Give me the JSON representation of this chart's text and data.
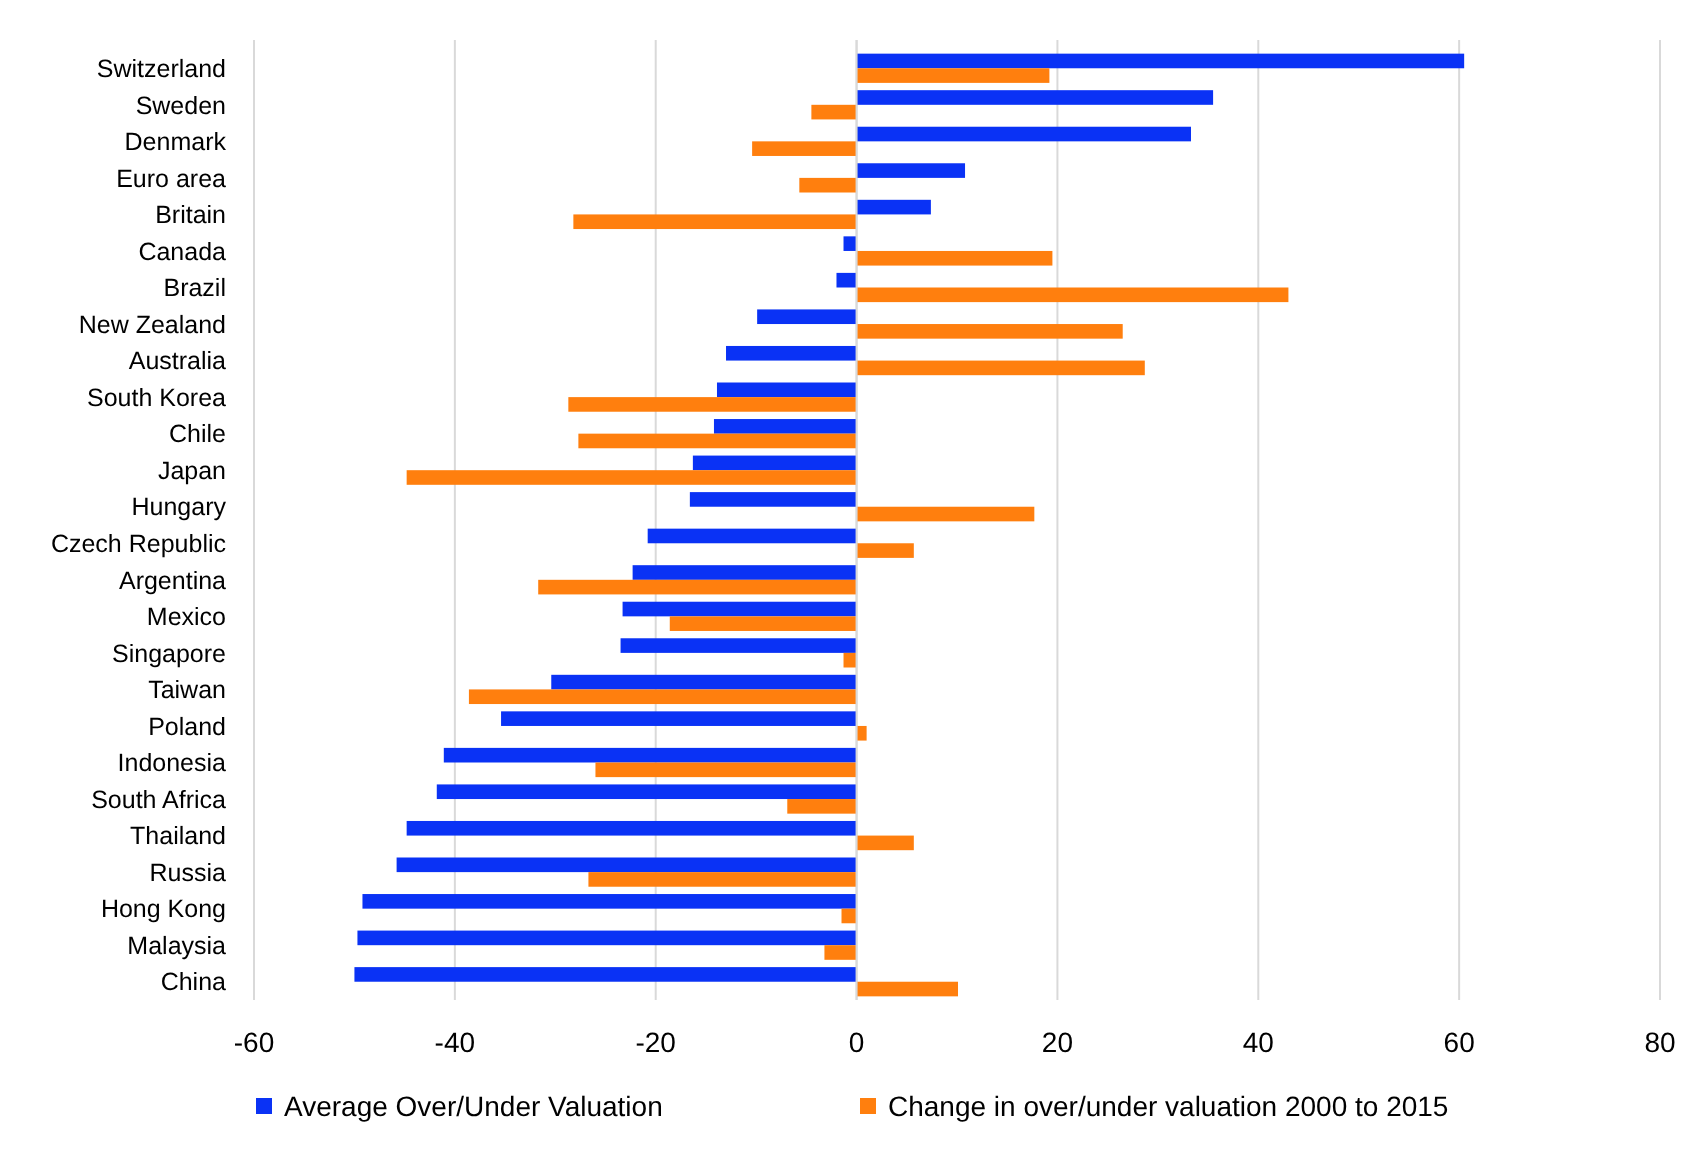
{
  "chart_data": {
    "type": "bar",
    "orientation": "horizontal",
    "categories": [
      "Switzerland",
      "Sweden",
      "Denmark",
      "Euro area",
      "Britain",
      "Canada",
      "Brazil",
      "New Zealand",
      "Australia",
      "South Korea",
      "Chile",
      "Japan",
      "Hungary",
      "Czech Republic",
      "Argentina",
      "Mexico",
      "Singapore",
      "Taiwan",
      "Poland",
      "Indonesia",
      "South Africa",
      "Thailand",
      "Russia",
      "Hong Kong",
      "Malaysia",
      "China"
    ],
    "series": [
      {
        "name": "Average Over/Under Valuation",
        "color": "#0a32f5",
        "values": [
          60.5,
          35.5,
          33.3,
          10.8,
          7.4,
          -1.3,
          -2.0,
          -9.9,
          -13.0,
          -13.9,
          -14.2,
          -16.3,
          -16.6,
          -20.8,
          -22.3,
          -23.3,
          -23.5,
          -30.4,
          -35.4,
          -41.1,
          -41.8,
          -44.8,
          -45.8,
          -49.2,
          -49.7,
          -50.0
        ]
      },
      {
        "name": "Change in over/under valuation 2000 to 2015",
        "color": "#ff7f0e",
        "values": [
          19.2,
          -4.5,
          -10.4,
          -5.7,
          -28.2,
          19.5,
          43.0,
          26.5,
          28.7,
          -28.7,
          -27.7,
          -44.8,
          17.7,
          5.7,
          -31.7,
          -18.6,
          -1.3,
          -38.6,
          1.0,
          -26.0,
          -6.9,
          5.7,
          -26.7,
          -1.5,
          -3.2,
          10.1
        ]
      }
    ],
    "xlim": [
      -60,
      80
    ],
    "xticks": [
      -60,
      -40,
      -20,
      0,
      20,
      40,
      60,
      80
    ],
    "grid": "x",
    "legend": "bottom"
  }
}
